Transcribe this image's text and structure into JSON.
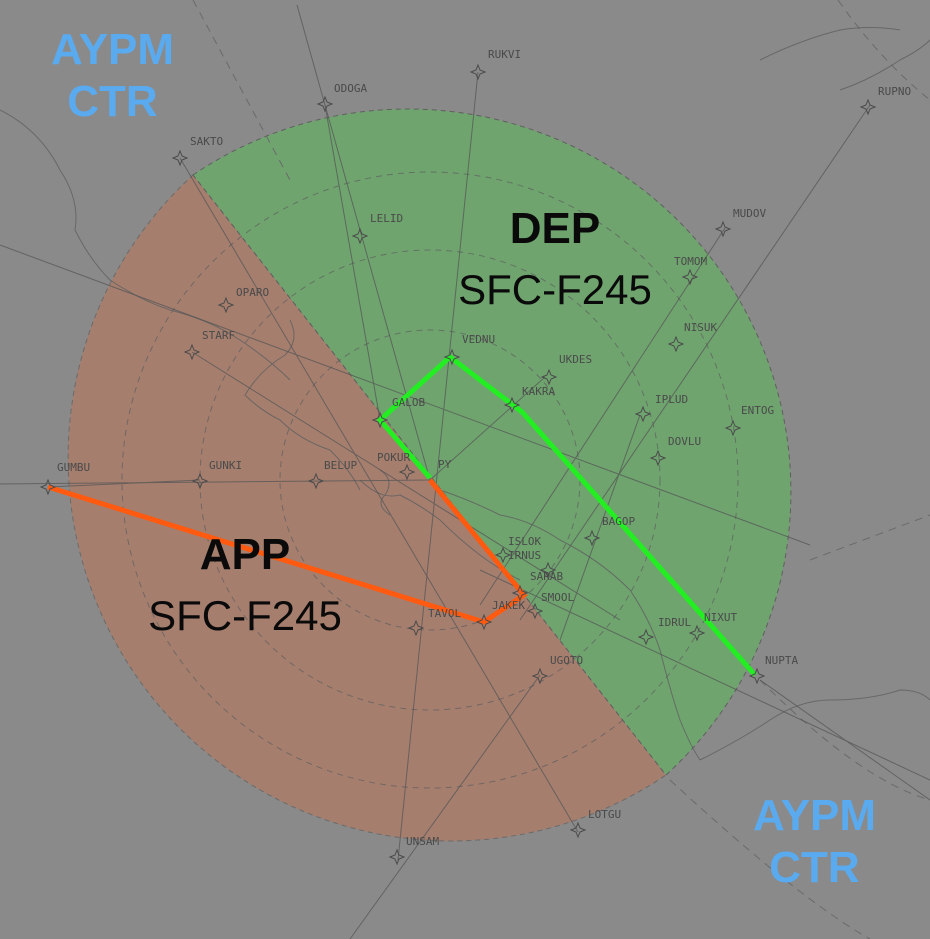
{
  "map": {
    "colors": {
      "background": "#8a8a8a",
      "departure_sector": "#6fa46f",
      "approach_sector": "#a57e6e",
      "departure_route": "#22ee22",
      "approach_route": "#ff5a10",
      "ctr_label": "#5aaaf0"
    },
    "ctr_labels": [
      {
        "line1": "AYPM",
        "line2": "CTR"
      },
      {
        "line1": "AYPM",
        "line2": "CTR"
      }
    ],
    "sectors": {
      "departure": {
        "name": "DEP",
        "altitude": "SFC-F245"
      },
      "approach": {
        "name": "APP",
        "altitude": "SFC-F245"
      }
    },
    "airport_label": "PY",
    "waypoints": [
      "RUKVI",
      "ODOGA",
      "RUPNO",
      "SAKTO",
      "LELID",
      "MUDOV",
      "TOMOM",
      "OPARO",
      "STARF",
      "NISUK",
      "VEDNU",
      "UKDES",
      "KAKRA",
      "GALOB",
      "IPLUD",
      "ENTOG",
      "DOVLU",
      "GUMBU",
      "GUNKI",
      "BELUP",
      "POKUR",
      "BAGOP",
      "ISLOK",
      "IRNUS",
      "SARAB",
      "SMOOL",
      "TAVOL",
      "JAKEK",
      "IDRUL",
      "NIXUT",
      "NUPTA",
      "UGOTO",
      "LOTGU",
      "UNSAM"
    ]
  }
}
